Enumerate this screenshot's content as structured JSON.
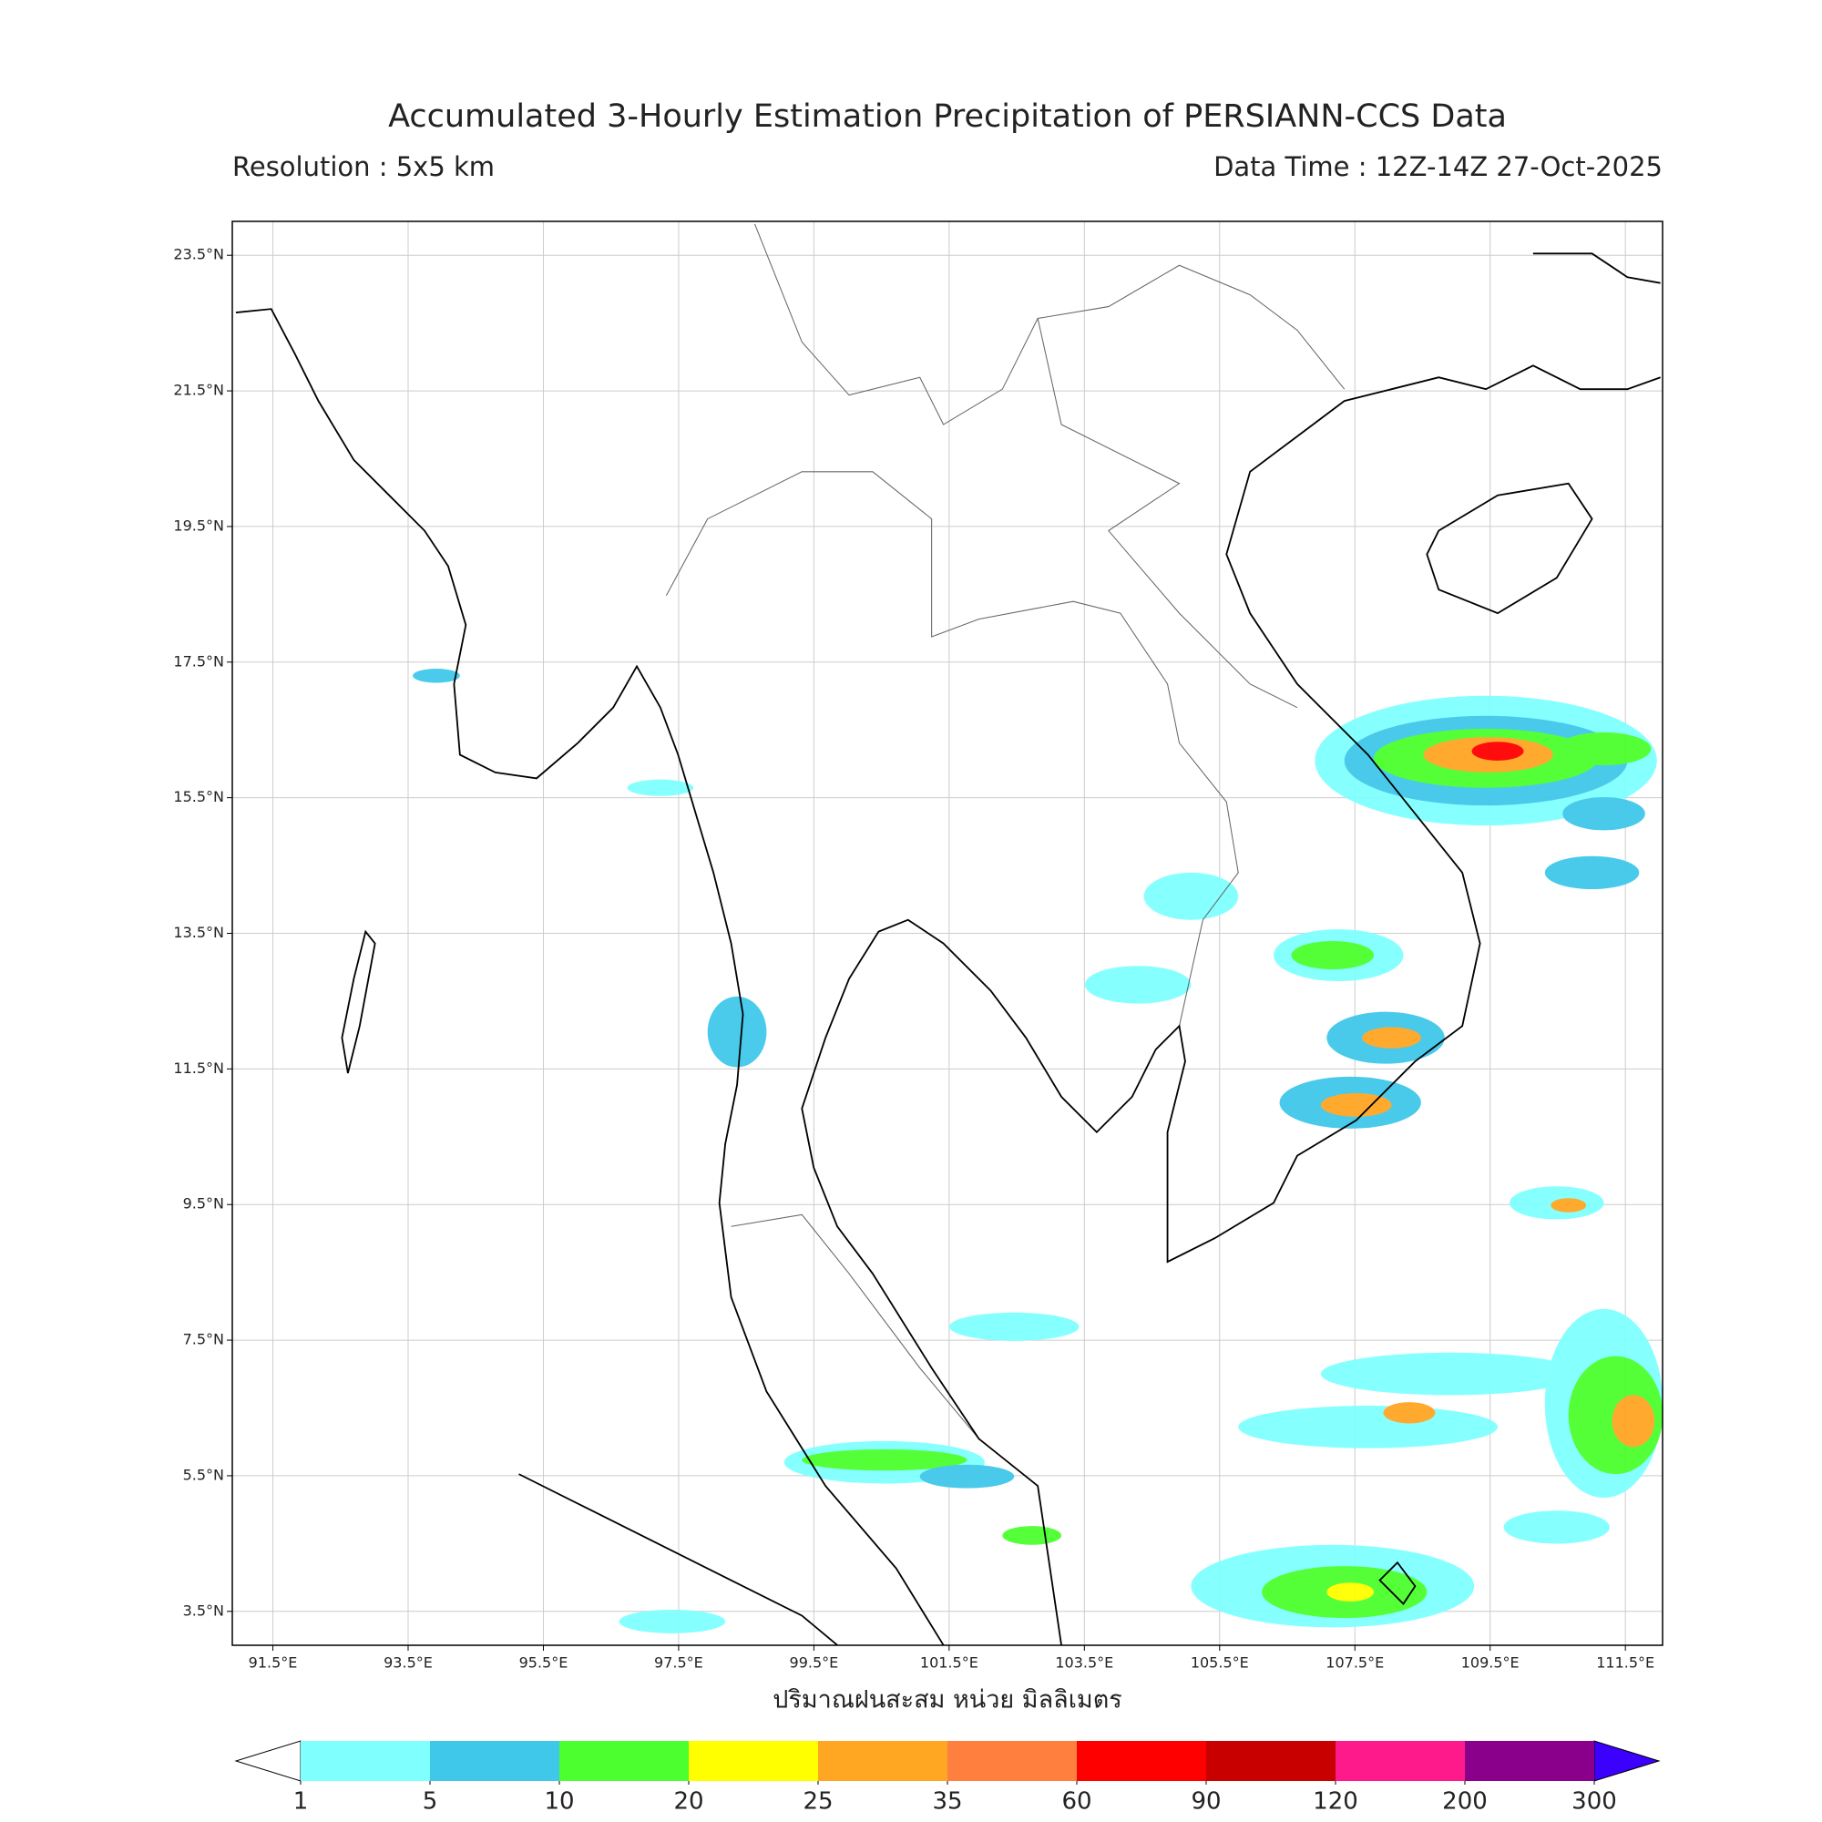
{
  "header": {
    "title": "Accumulated 3-Hourly Estimation Precipitation of PERSIANN-CCS Data",
    "resolution": "Resolution : 5x5 km",
    "data_time": "Data Time : 12Z-14Z 27-Oct-2025"
  },
  "map": {
    "xlim": [
      90.9,
      112.05
    ],
    "ylim": [
      3.0,
      24.0
    ],
    "grid": true,
    "xticks": [
      {
        "value": 91.5,
        "label": "91.5°E"
      },
      {
        "value": 93.5,
        "label": "93.5°E"
      },
      {
        "value": 95.5,
        "label": "95.5°E"
      },
      {
        "value": 97.5,
        "label": "97.5°E"
      },
      {
        "value": 99.5,
        "label": "99.5°E"
      },
      {
        "value": 101.5,
        "label": "101.5°E"
      },
      {
        "value": 103.5,
        "label": "103.5°E"
      },
      {
        "value": 105.5,
        "label": "105.5°E"
      },
      {
        "value": 107.5,
        "label": "107.5°E"
      },
      {
        "value": 109.5,
        "label": "109.5°E"
      },
      {
        "value": 111.5,
        "label": "111.5°E"
      }
    ],
    "yticks": [
      {
        "value": 23.5,
        "label": "23.5°N"
      },
      {
        "value": 21.5,
        "label": "21.5°N"
      },
      {
        "value": 19.5,
        "label": "19.5°N"
      },
      {
        "value": 17.5,
        "label": "17.5°N"
      },
      {
        "value": 15.5,
        "label": "15.5°N"
      },
      {
        "value": 13.5,
        "label": "13.5°N"
      },
      {
        "value": 11.5,
        "label": "11.5°N"
      },
      {
        "value": 9.5,
        "label": "9.5°N"
      },
      {
        "value": 7.5,
        "label": "7.5°N"
      },
      {
        "value": 5.5,
        "label": "5.5°N"
      },
      {
        "value": 3.5,
        "label": "3.5°N"
      }
    ],
    "xlabel": "ปริมาณฝนสะสม หน่วย มิลลิเมตร"
  },
  "colorbar": {
    "ticks": [
      1,
      5,
      10,
      20,
      25,
      35,
      60,
      90,
      120,
      200,
      300
    ],
    "colors": [
      "#80ffff",
      "#40c8ea",
      "#4cff2e",
      "#ffff00",
      "#ffa623",
      "#ff7f3f",
      "#ff0000",
      "#c80000",
      "#ff1a8c",
      "#8a008a"
    ],
    "under_color": "#ffffff",
    "over_color": "#3c00ff"
  }
}
